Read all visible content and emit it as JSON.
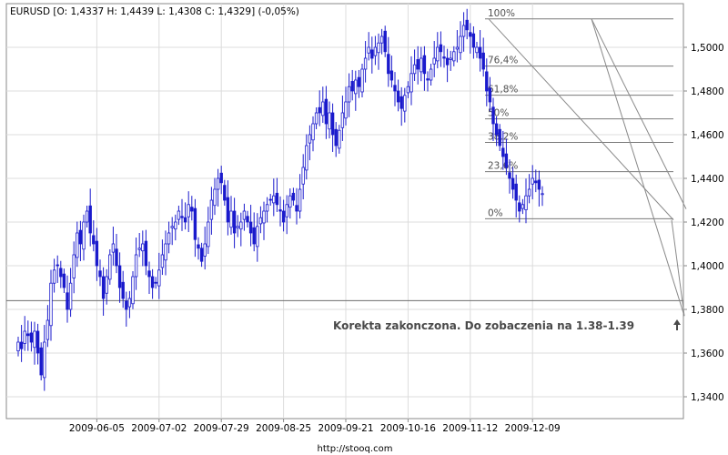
{
  "chart_data": {
    "type": "candlestick",
    "title": "EURUSD [O: 1,4337  H: 1,4439  L: 1,4308  C: 1,4329] (-0,05%)",
    "footer": "http://stooq.com",
    "annotation": "Korekta zakonczona. Do zobaczenia na 1.38-1.39",
    "ylim": [
      1.33,
      1.52
    ],
    "y_ticks": [
      {
        "value": 1.34,
        "label": "1,3400"
      },
      {
        "value": 1.36,
        "label": "1,3600"
      },
      {
        "value": 1.38,
        "label": "1,3800"
      },
      {
        "value": 1.4,
        "label": "1,4000"
      },
      {
        "value": 1.42,
        "label": "1,4200"
      },
      {
        "value": 1.44,
        "label": "1,4400"
      },
      {
        "value": 1.46,
        "label": "1,4600"
      },
      {
        "value": 1.48,
        "label": "1,4800"
      },
      {
        "value": 1.5,
        "label": "1,5000"
      }
    ],
    "x_ticks": [
      {
        "index": 24,
        "label": "2009-06-05"
      },
      {
        "index": 43,
        "label": "2009-07-02"
      },
      {
        "index": 62,
        "label": "2009-07-29"
      },
      {
        "index": 81,
        "label": "2009-08-25"
      },
      {
        "index": 100,
        "label": "2009-09-21"
      },
      {
        "index": 119,
        "label": "2009-10-16"
      },
      {
        "index": 138,
        "label": "2009-11-12"
      },
      {
        "index": 157,
        "label": "2009-12-09"
      }
    ],
    "fibonacci": {
      "high": 1.513,
      "low": 1.4215,
      "levels": [
        {
          "ratio": 1.0,
          "label": "100%"
        },
        {
          "ratio": 0.764,
          "label": "76,4%"
        },
        {
          "ratio": 0.618,
          "label": "61,8%"
        },
        {
          "ratio": 0.5,
          "label": "50%"
        },
        {
          "ratio": 0.382,
          "label": "38,2%"
        },
        {
          "ratio": 0.236,
          "label": "23,6%"
        },
        {
          "ratio": 0.0,
          "label": "0%"
        }
      ]
    },
    "support_level": 1.384,
    "closes": [
      1.365,
      1.362,
      1.37,
      1.368,
      1.365,
      1.37,
      1.36,
      1.35,
      1.365,
      1.375,
      1.392,
      1.398,
      1.4,
      1.395,
      1.39,
      1.38,
      1.392,
      1.405,
      1.415,
      1.41,
      1.42,
      1.425,
      1.415,
      1.41,
      1.4,
      1.395,
      1.385,
      1.395,
      1.405,
      1.41,
      1.4,
      1.39,
      1.385,
      1.38,
      1.385,
      1.395,
      1.405,
      1.408,
      1.41,
      1.4,
      1.395,
      1.39,
      1.392,
      1.398,
      1.405,
      1.41,
      1.415,
      1.418,
      1.42,
      1.425,
      1.422,
      1.42,
      1.428,
      1.425,
      1.412,
      1.408,
      1.402,
      1.41,
      1.42,
      1.43,
      1.435,
      1.44,
      1.438,
      1.43,
      1.42,
      1.425,
      1.415,
      1.418,
      1.42,
      1.425,
      1.42,
      1.415,
      1.41,
      1.418,
      1.422,
      1.425,
      1.428,
      1.43,
      1.432,
      1.428,
      1.425,
      1.42,
      1.428,
      1.432,
      1.43,
      1.425,
      1.435,
      1.445,
      1.455,
      1.46,
      1.465,
      1.47,
      1.47,
      1.475,
      1.465,
      1.47,
      1.46,
      1.455,
      1.462,
      1.47,
      1.475,
      1.482,
      1.48,
      1.485,
      1.482,
      1.49,
      1.495,
      1.5,
      1.495,
      1.5,
      1.502,
      1.505,
      1.498,
      1.488,
      1.485,
      1.48,
      1.475,
      1.472,
      1.478,
      1.482,
      1.488,
      1.492,
      1.49,
      1.495,
      1.488,
      1.485,
      1.49,
      1.495,
      1.5,
      1.498,
      1.495,
      1.492,
      1.495,
      1.498,
      1.5,
      1.505,
      1.51,
      1.508,
      1.505,
      1.5,
      1.5,
      1.495,
      1.49,
      1.48,
      1.475,
      1.465,
      1.46,
      1.455,
      1.45,
      1.445,
      1.44,
      1.435,
      1.43,
      1.425,
      1.428,
      1.432,
      1.435,
      1.44,
      1.438,
      1.435,
      1.433
    ]
  }
}
